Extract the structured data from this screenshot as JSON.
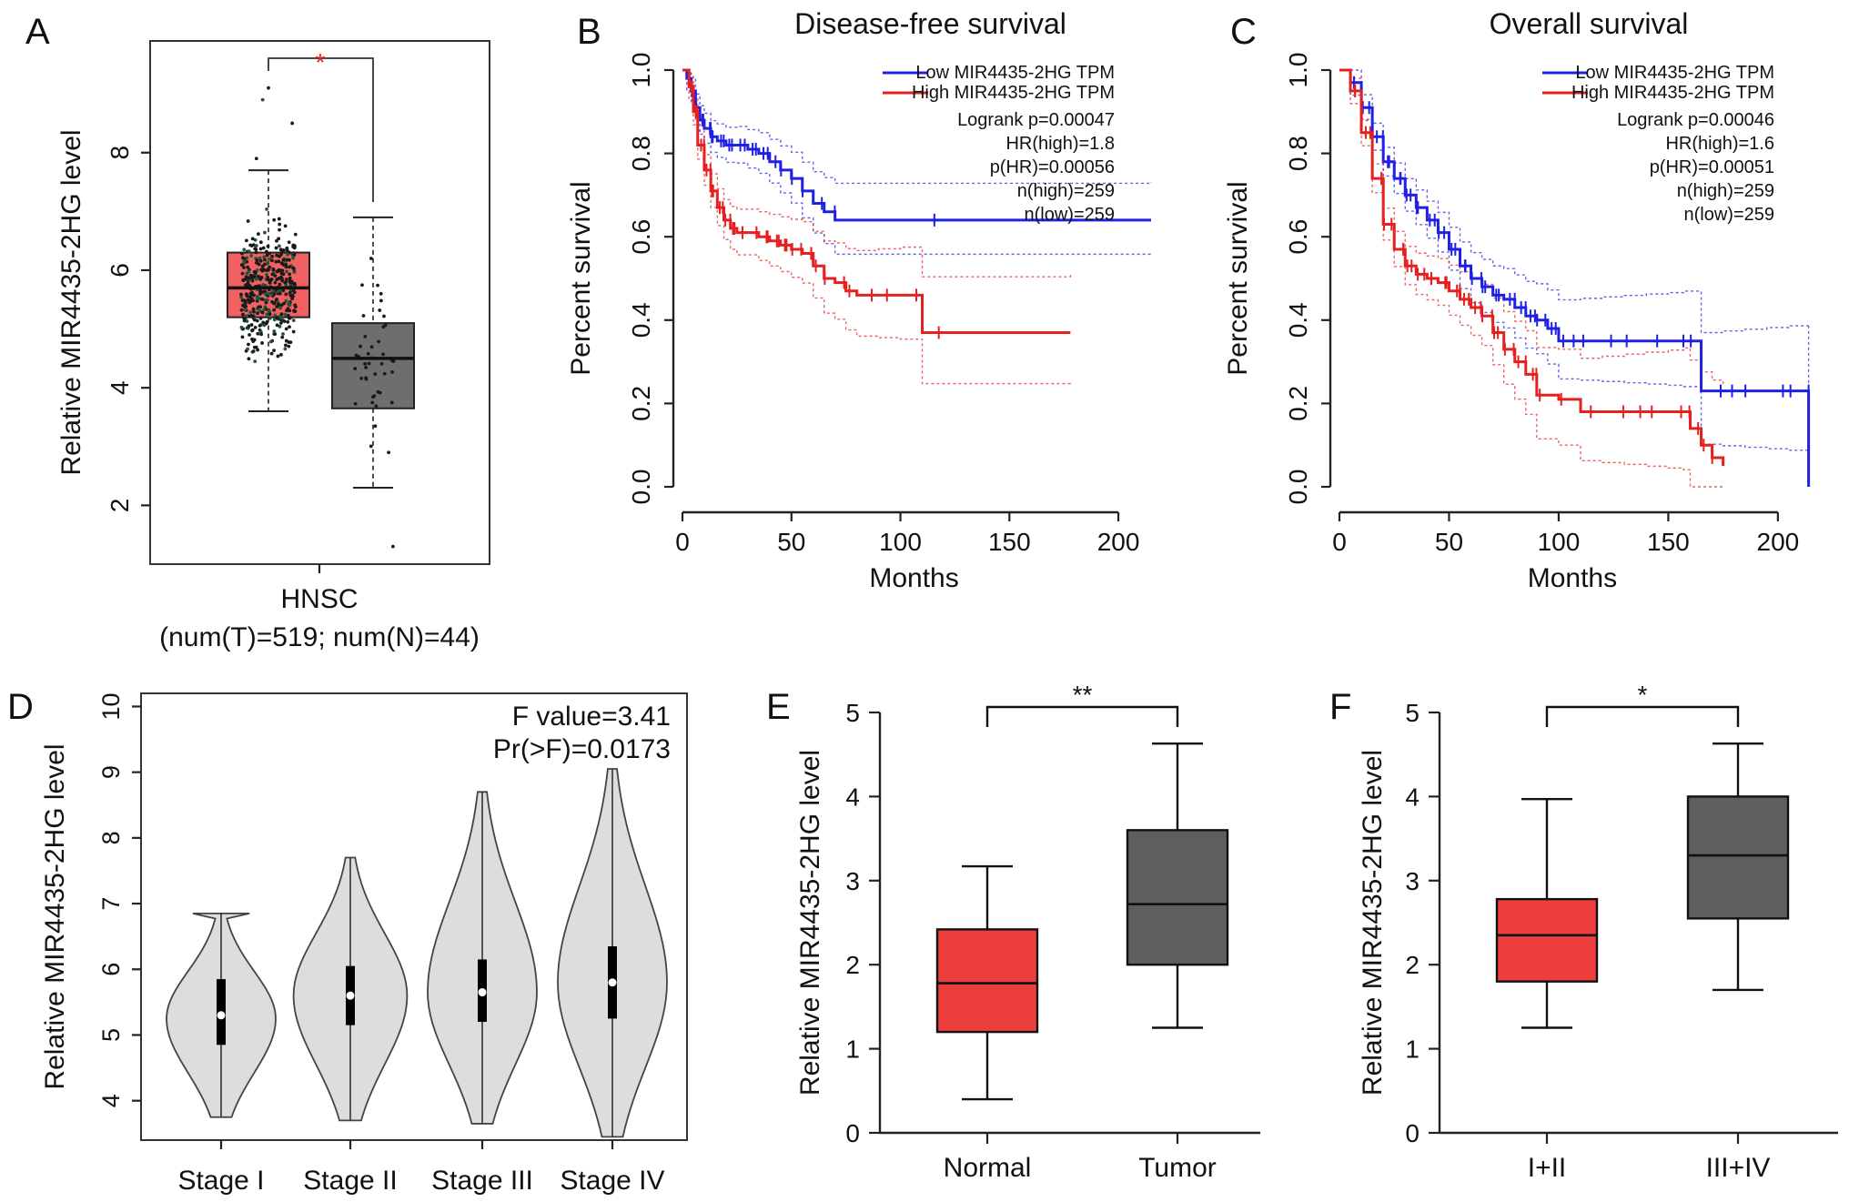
{
  "chart_data": [
    {
      "panel": "A",
      "type": "box",
      "ylabel": "Relative MIR4435-2HG level",
      "ylim": [
        1,
        9.9
      ],
      "yticks": [
        2,
        4,
        6,
        8
      ],
      "category_label": "HNSC",
      "category_sublabel": "(num(T)=519; num(N)=44)",
      "significance": "*",
      "colors": {
        "tumor": "#f26161",
        "normal": "#6e6e6e",
        "sig": "#e02020"
      },
      "boxes": [
        {
          "group": "Tumor",
          "min": 3.6,
          "q1": 5.2,
          "median": 5.7,
          "q3": 6.3,
          "max": 7.7,
          "points_max": 9.1
        },
        {
          "group": "Normal",
          "min": 2.3,
          "q1": 3.65,
          "median": 4.5,
          "q3": 5.1,
          "max": 6.9,
          "points_min": 1.3
        }
      ]
    },
    {
      "panel": "B",
      "type": "line",
      "title": "Disease-free survival",
      "xlabel": "Months",
      "ylabel": "Percent survival",
      "xlim": [
        0,
        215
      ],
      "ylim": [
        0,
        1.03
      ],
      "xticks": [
        0,
        50,
        100,
        150,
        200
      ],
      "yticks": [
        "0.0",
        "0.2",
        "0.4",
        "0.6",
        "0.8",
        "1.0"
      ],
      "legend": [
        "Low MIR4435-2HG TPM",
        "High MIR4435-2HG TPM"
      ],
      "stats": [
        "Logrank p=0.00047",
        "HR(high)=1.8",
        "p(HR)=0.00056",
        "n(high)=259",
        "n(low)=259"
      ],
      "series": [
        {
          "name": "Low MIR4435-2HG TPM",
          "color": "#1f1fe6",
          "x": [
            0,
            2,
            4,
            6,
            8,
            10,
            13,
            16,
            20,
            25,
            30,
            35,
            40,
            45,
            50,
            55,
            60,
            65,
            70,
            215
          ],
          "y": [
            1.0,
            0.98,
            0.95,
            0.91,
            0.88,
            0.86,
            0.84,
            0.83,
            0.82,
            0.82,
            0.81,
            0.8,
            0.78,
            0.76,
            0.74,
            0.71,
            0.68,
            0.66,
            0.64,
            0.64
          ]
        },
        {
          "name": "High MIR4435-2HG TPM",
          "color": "#e61f1f",
          "x": [
            0,
            3,
            5,
            7,
            10,
            13,
            16,
            19,
            22,
            25,
            35,
            40,
            45,
            50,
            55,
            60,
            65,
            70,
            75,
            80,
            90,
            100,
            110,
            178
          ],
          "y": [
            1.0,
            0.96,
            0.9,
            0.82,
            0.76,
            0.71,
            0.67,
            0.64,
            0.62,
            0.61,
            0.6,
            0.59,
            0.58,
            0.57,
            0.56,
            0.53,
            0.5,
            0.49,
            0.47,
            0.46,
            0.46,
            0.46,
            0.37,
            0.37
          ]
        }
      ]
    },
    {
      "panel": "C",
      "type": "line",
      "title": "Overall survival",
      "xlabel": "Months",
      "ylabel": "Percent survival",
      "xlim": [
        0,
        215
      ],
      "ylim": [
        0,
        1.03
      ],
      "xticks": [
        0,
        50,
        100,
        150,
        200
      ],
      "yticks": [
        "0.0",
        "0.2",
        "0.4",
        "0.6",
        "0.8",
        "1.0"
      ],
      "legend": [
        "Low MIR4435-2HG TPM",
        "High MIR4435-2HG TPM"
      ],
      "stats": [
        "Logrank p=0.00046",
        "HR(high)=1.6",
        "p(HR)=0.00051",
        "n(high)=259",
        "n(low)=259"
      ],
      "series": [
        {
          "name": "Low MIR4435-2HG TPM",
          "color": "#1f1fe6",
          "x": [
            0,
            5,
            10,
            15,
            20,
            25,
            30,
            35,
            40,
            45,
            50,
            55,
            60,
            65,
            70,
            75,
            80,
            85,
            90,
            95,
            100,
            110,
            120,
            130,
            140,
            150,
            157,
            165,
            175,
            185,
            195,
            205,
            214,
            214
          ],
          "y": [
            1.0,
            0.97,
            0.91,
            0.84,
            0.78,
            0.74,
            0.7,
            0.67,
            0.64,
            0.61,
            0.57,
            0.53,
            0.5,
            0.48,
            0.46,
            0.45,
            0.43,
            0.41,
            0.4,
            0.38,
            0.35,
            0.35,
            0.35,
            0.35,
            0.35,
            0.35,
            0.35,
            0.23,
            0.23,
            0.23,
            0.23,
            0.23,
            0.23,
            0.0
          ]
        },
        {
          "name": "High MIR4435-2HG TPM",
          "color": "#e61f1f",
          "x": [
            0,
            5,
            10,
            15,
            20,
            25,
            30,
            35,
            40,
            45,
            50,
            55,
            60,
            65,
            70,
            75,
            80,
            85,
            90,
            100,
            110,
            120,
            130,
            140,
            150,
            157,
            160,
            165,
            170,
            175
          ],
          "y": [
            1.0,
            0.95,
            0.85,
            0.74,
            0.63,
            0.57,
            0.53,
            0.51,
            0.5,
            0.49,
            0.47,
            0.45,
            0.43,
            0.41,
            0.37,
            0.33,
            0.3,
            0.27,
            0.22,
            0.21,
            0.18,
            0.18,
            0.18,
            0.18,
            0.18,
            0.18,
            0.14,
            0.1,
            0.07,
            0.05
          ]
        }
      ]
    },
    {
      "panel": "D",
      "type": "violin",
      "ylabel": "Relative MIR4435-2HG level",
      "ylim": [
        3.4,
        10.2
      ],
      "yticks": [
        4,
        5,
        6,
        7,
        8,
        9,
        10
      ],
      "categories": [
        "Stage I",
        "Stage II",
        "Stage III",
        "Stage IV"
      ],
      "stats": [
        "F value=3.41",
        "Pr(>F)=0.0173"
      ],
      "fill": "#dddddd",
      "violins": [
        {
          "group": "Stage I",
          "min": 3.75,
          "max": 6.85,
          "q1": 4.85,
          "median": 5.3,
          "q3": 5.85,
          "mode": 5.25,
          "width": 0.5
        },
        {
          "group": "Stage II",
          "min": 3.7,
          "max": 7.7,
          "q1": 5.15,
          "median": 5.6,
          "q3": 6.05,
          "mode": 5.6,
          "width": 0.52
        },
        {
          "group": "Stage III",
          "min": 3.65,
          "max": 8.7,
          "q1": 5.2,
          "median": 5.65,
          "q3": 6.15,
          "mode": 5.65,
          "width": 0.5
        },
        {
          "group": "Stage IV",
          "min": 3.45,
          "max": 9.05,
          "q1": 5.25,
          "median": 5.8,
          "q3": 6.35,
          "mode": 5.8,
          "width": 0.5
        }
      ]
    },
    {
      "panel": "E",
      "type": "box",
      "ylabel": "Relative MIR4435-2HG level",
      "ylim": [
        0,
        5.1
      ],
      "yticks": [
        0,
        1,
        2,
        3,
        4,
        5
      ],
      "categories": [
        "Normal",
        "Tumor"
      ],
      "significance": "**",
      "boxes": [
        {
          "group": "Normal",
          "color": "#ee3d3d",
          "min": 0.4,
          "q1": 1.2,
          "median": 1.78,
          "q3": 2.42,
          "max": 3.17
        },
        {
          "group": "Tumor",
          "color": "#5e5e5e",
          "min": 1.25,
          "q1": 2.0,
          "median": 2.72,
          "q3": 3.6,
          "max": 4.63
        }
      ]
    },
    {
      "panel": "F",
      "type": "box",
      "ylabel": "Relative MIR4435-2HG level",
      "ylim": [
        0,
        5.1
      ],
      "yticks": [
        0,
        1,
        2,
        3,
        4,
        5
      ],
      "categories": [
        "I+II",
        "III+IV"
      ],
      "significance": "*",
      "boxes": [
        {
          "group": "I+II",
          "color": "#ee3d3d",
          "min": 1.25,
          "q1": 1.8,
          "median": 2.35,
          "q3": 2.78,
          "max": 3.97
        },
        {
          "group": "III+IV",
          "color": "#5e5e5e",
          "min": 1.7,
          "q1": 2.55,
          "median": 3.3,
          "q3": 4.0,
          "max": 4.63
        }
      ]
    }
  ]
}
